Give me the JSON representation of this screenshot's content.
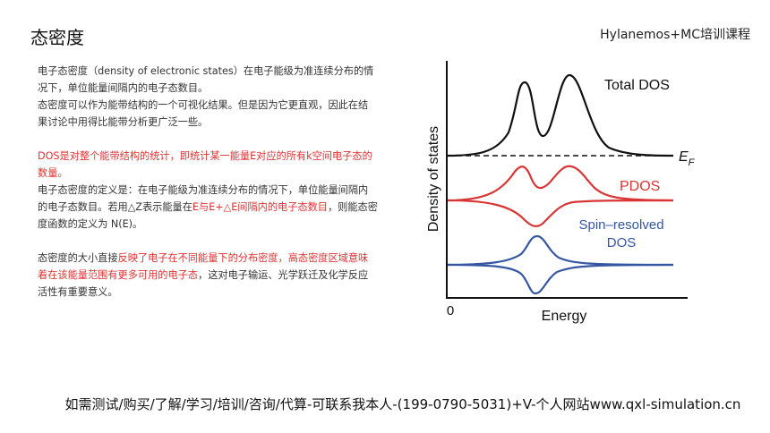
{
  "header": {
    "title": "态密度",
    "course": "Hylanemos+MC培训课程"
  },
  "paragraph1": {
    "line1": "电子态密度（density of electronic states）在电子能级为准连续分布的情况下，单位能量间隔内的电子态数目。",
    "line2": "态密度可以作为能带结构的一个可视化结果。但是因为它更直观，因此在结果讨论中用得比能带分析更广泛一些。"
  },
  "paragraph2": {
    "red_line": "DOS是对整个能带结构的统计，即统计某一能量E对应的所有k空间电子态的数量。",
    "def_prefix": "电子态密度的定义是：在电子能级为准连续分布的情况下，单位能量间隔内的电子态数目。若用△Z表示能量在",
    "def_red": "E与E+△E间隔内的电子态数目",
    "def_suffix": "，则能态密度函数的定义为 N(E)。"
  },
  "paragraph3": {
    "prefix": "态密度的大小直接",
    "red1": "反映了电子在不同能量下的分布密度，高态密度区域意味着在该能量范围有更多可用的电子态",
    "suffix": "，这对电子输运、光学跃迁及化学反应活性有重要意义。"
  },
  "figure": {
    "ylabel": "Density of states",
    "xlabel": "Energy",
    "origin_label": "0",
    "total_label": "Total DOS",
    "ef_label": "E",
    "ef_sub": "F",
    "pdos_label": "PDOS",
    "spin_label_1": "Spin–resolved",
    "spin_label_2": "DOS",
    "colors": {
      "total": "#111111",
      "pdos": "#d93535",
      "spin": "#3556a0"
    }
  },
  "footer": {
    "text": "如需测试/购买/了解/学习/培训/咨询/代算-可联系我本人-(199-0790-5031)+V-个人网站www.qxl-simulation.cn"
  }
}
